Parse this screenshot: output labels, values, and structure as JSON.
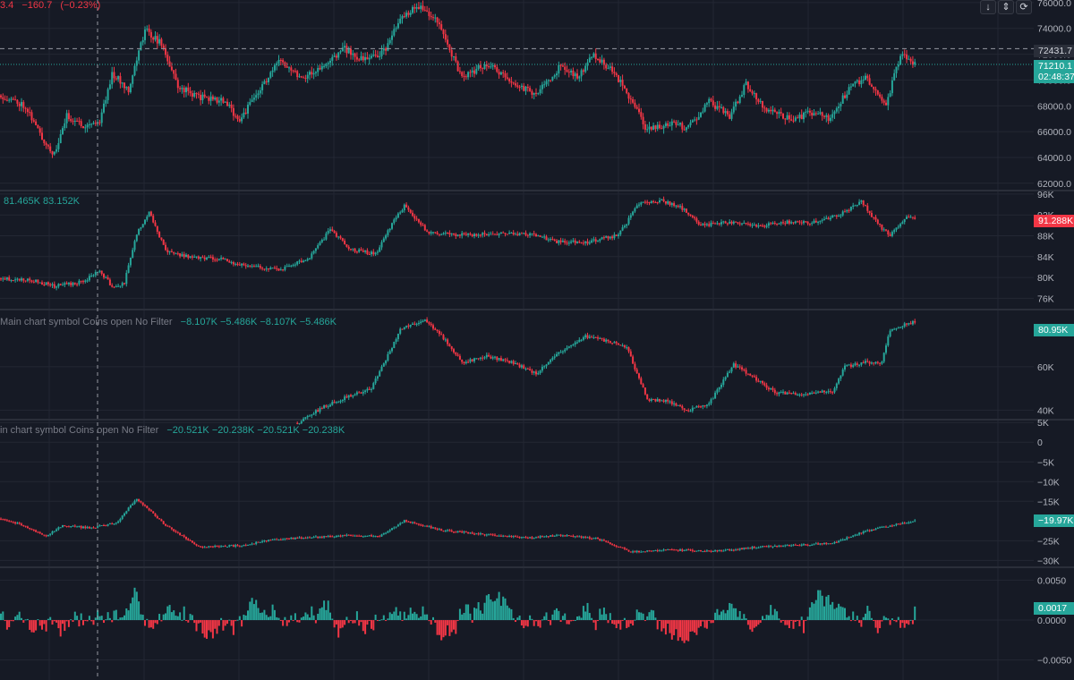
{
  "header": {
    "ohlc_fragment": "3.4",
    "change_abs": "−160.7",
    "change_pct": "(−0.23%)"
  },
  "controls": [
    {
      "name": "scroll-down-icon",
      "glyph": "↓"
    },
    {
      "name": "collapse-icon",
      "glyph": "⇕"
    },
    {
      "name": "refresh-icon",
      "glyph": "⟳"
    }
  ],
  "colors": {
    "up": "#26a69a",
    "down": "#f23645",
    "bg": "#161a25",
    "grid": "#232733",
    "label_green": "#26a69a",
    "label_gray": "#787b86"
  },
  "panes": {
    "price": {
      "ticks": [
        "76000.0",
        "74000.0",
        "72000.0",
        "70000.0",
        "68000.0",
        "66000.0",
        "64000.0",
        "62000.0"
      ],
      "badge_dark": "72431.7",
      "badge_price": "71210.1",
      "badge_timer": "02:48:37"
    },
    "oi": {
      "label": "81.465K  83.152K",
      "ticks": [
        "96K",
        "92K",
        "88K",
        "84K",
        "80K",
        "76K"
      ],
      "badge": "91.288K"
    },
    "cvd1": {
      "title": "Main chart symbol Coins open No Filter",
      "values": [
        "−8.107K",
        "−5.486K",
        "−8.107K",
        "−5.486K"
      ],
      "ticks": [
        "60K",
        "40K"
      ],
      "badge": "80.95K"
    },
    "cvd2": {
      "title": "in chart symbol Coins open No Filter",
      "values": [
        "−20.521K",
        "−20.238K",
        "−20.521K",
        "−20.238K"
      ],
      "ticks": [
        "5K",
        "0",
        "−5K",
        "−10K",
        "−15K",
        "−25K",
        "−30K"
      ],
      "badge": "−19.97K"
    },
    "hist": {
      "ticks": [
        "0.0050",
        "0.0000",
        "−0.0050"
      ],
      "badge": "0.0017"
    }
  },
  "chart_data": [
    {
      "type": "candlestick",
      "title": "",
      "ylim": [
        61500,
        76200
      ],
      "y_ticks": [
        76000,
        74000,
        72000,
        70000,
        68000,
        66000,
        64000,
        62000
      ],
      "reference_lines": [
        72431.7,
        71210.1
      ],
      "close_anchors": [
        [
          0,
          68800
        ],
        [
          12,
          68000
        ],
        [
          20,
          65500
        ],
        [
          26,
          64200
        ],
        [
          32,
          67200
        ],
        [
          40,
          66500
        ],
        [
          48,
          66800
        ],
        [
          54,
          70500
        ],
        [
          62,
          69300
        ],
        [
          70,
          73900
        ],
        [
          78,
          72800
        ],
        [
          86,
          69500
        ],
        [
          96,
          68700
        ],
        [
          108,
          68400
        ],
        [
          116,
          66900
        ],
        [
          126,
          69300
        ],
        [
          136,
          71600
        ],
        [
          146,
          70200
        ],
        [
          158,
          71100
        ],
        [
          166,
          72500
        ],
        [
          176,
          71500
        ],
        [
          186,
          72200
        ],
        [
          194,
          74600
        ],
        [
          202,
          75800
        ],
        [
          210,
          75000
        ],
        [
          216,
          73200
        ],
        [
          224,
          70100
        ],
        [
          236,
          71300
        ],
        [
          248,
          69800
        ],
        [
          260,
          68900
        ],
        [
          272,
          71100
        ],
        [
          280,
          70200
        ],
        [
          288,
          72000
        ],
        [
          298,
          70600
        ],
        [
          306,
          68500
        ],
        [
          314,
          66100
        ],
        [
          324,
          66600
        ],
        [
          334,
          66300
        ],
        [
          344,
          68300
        ],
        [
          354,
          67200
        ],
        [
          362,
          69700
        ],
        [
          372,
          67700
        ],
        [
          384,
          66900
        ],
        [
          394,
          67500
        ],
        [
          402,
          67000
        ],
        [
          412,
          69300
        ],
        [
          420,
          70200
        ],
        [
          430,
          68000
        ],
        [
          437,
          72000
        ],
        [
          444,
          71300
        ]
      ]
    },
    {
      "type": "candlestick",
      "title": "",
      "ylim": [
        74000,
        96500
      ],
      "y_ticks": [
        96,
        92,
        88,
        84,
        80,
        76
      ],
      "series_unit": "K",
      "close_anchors": [
        [
          0,
          79800
        ],
        [
          16,
          79400
        ],
        [
          26,
          78300
        ],
        [
          40,
          79200
        ],
        [
          48,
          81300
        ],
        [
          55,
          77800
        ],
        [
          60,
          79000
        ],
        [
          66,
          88400
        ],
        [
          72,
          92700
        ],
        [
          80,
          85000
        ],
        [
          92,
          83900
        ],
        [
          106,
          83600
        ],
        [
          118,
          82300
        ],
        [
          136,
          81600
        ],
        [
          150,
          83800
        ],
        [
          160,
          89200
        ],
        [
          170,
          85400
        ],
        [
          182,
          84500
        ],
        [
          190,
          90300
        ],
        [
          196,
          93700
        ],
        [
          208,
          88500
        ],
        [
          224,
          88200
        ],
        [
          256,
          88400
        ],
        [
          270,
          86900
        ],
        [
          284,
          86700
        ],
        [
          300,
          88100
        ],
        [
          310,
          94200
        ],
        [
          320,
          94800
        ],
        [
          330,
          93600
        ],
        [
          340,
          90000
        ],
        [
          356,
          90700
        ],
        [
          368,
          89800
        ],
        [
          380,
          90600
        ],
        [
          396,
          90600
        ],
        [
          408,
          92100
        ],
        [
          418,
          94700
        ],
        [
          426,
          90200
        ],
        [
          432,
          88000
        ],
        [
          440,
          91500
        ],
        [
          444,
          91288
        ]
      ]
    },
    {
      "type": "candlestick",
      "title": "",
      "ylim": [
        36000,
        86000
      ],
      "y_ticks": [
        60000,
        40000
      ],
      "start_index": 144,
      "close_anchors": [
        [
          144,
          34000
        ],
        [
          156,
          41000
        ],
        [
          168,
          46000
        ],
        [
          180,
          50000
        ],
        [
          194,
          77000
        ],
        [
          206,
          82000
        ],
        [
          216,
          72000
        ],
        [
          224,
          62000
        ],
        [
          236,
          65000
        ],
        [
          248,
          62000
        ],
        [
          260,
          57000
        ],
        [
          272,
          67000
        ],
        [
          284,
          74000
        ],
        [
          294,
          72000
        ],
        [
          304,
          69000
        ],
        [
          314,
          45000
        ],
        [
          324,
          44000
        ],
        [
          334,
          40000
        ],
        [
          344,
          43000
        ],
        [
          356,
          61000
        ],
        [
          366,
          55000
        ],
        [
          376,
          48000
        ],
        [
          390,
          47500
        ],
        [
          404,
          49000
        ],
        [
          410,
          60000
        ],
        [
          420,
          62000
        ],
        [
          428,
          62000
        ],
        [
          432,
          77000
        ],
        [
          444,
          80950
        ]
      ]
    },
    {
      "type": "candlestick",
      "title": "",
      "ylim": [
        -31500,
        5500
      ],
      "y_ticks": [
        5000,
        0,
        -5000,
        -10000,
        -15000,
        -25000,
        -30000
      ],
      "close_anchors": [
        [
          0,
          -19400
        ],
        [
          12,
          -21300
        ],
        [
          22,
          -23800
        ],
        [
          30,
          -21100
        ],
        [
          44,
          -21800
        ],
        [
          56,
          -20500
        ],
        [
          66,
          -14300
        ],
        [
          80,
          -21100
        ],
        [
          96,
          -26500
        ],
        [
          118,
          -26200
        ],
        [
          132,
          -24600
        ],
        [
          148,
          -24300
        ],
        [
          166,
          -23600
        ],
        [
          184,
          -23800
        ],
        [
          196,
          -19900
        ],
        [
          214,
          -22300
        ],
        [
          232,
          -23300
        ],
        [
          256,
          -24300
        ],
        [
          272,
          -23600
        ],
        [
          290,
          -24500
        ],
        [
          306,
          -27800
        ],
        [
          326,
          -27300
        ],
        [
          346,
          -27700
        ],
        [
          370,
          -26500
        ],
        [
          392,
          -26000
        ],
        [
          404,
          -25600
        ],
        [
          420,
          -22600
        ],
        [
          430,
          -21400
        ],
        [
          444,
          -19970
        ]
      ]
    },
    {
      "type": "histogram",
      "title": "",
      "ylim": [
        -0.0075,
        0.0065
      ],
      "y_ticks": [
        0.005,
        0,
        -0.005
      ],
      "last_value": 0.0017,
      "seed": 7
    }
  ]
}
